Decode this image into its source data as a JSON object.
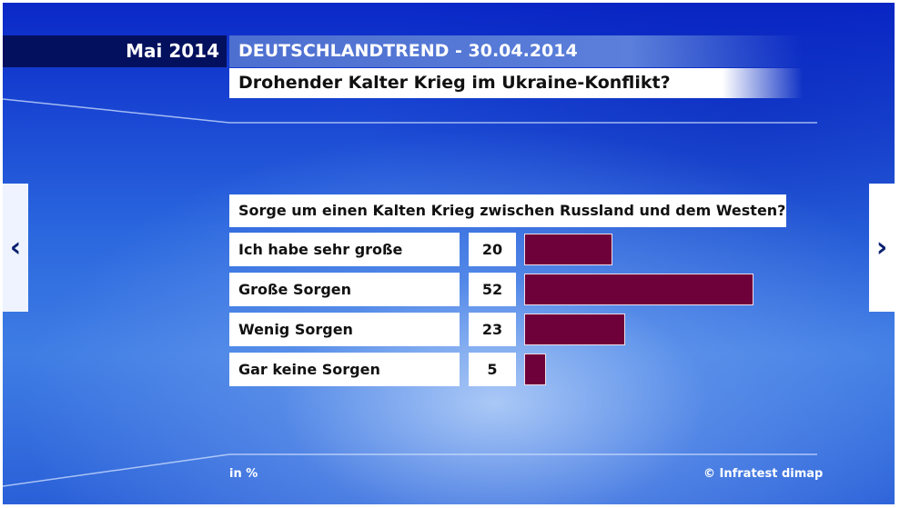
{
  "header": {
    "date_label": "Mai 2014",
    "trend_label": "DEUTSCHLANDTREND - 30.04.2014",
    "title": "Drohender Kalter Krieg im Ukraine-Konflikt?"
  },
  "colors": {
    "bar": "#6e003a",
    "background": "#2a66de",
    "date_box": "#03105e"
  },
  "icons": {
    "prev": "chevron-left-icon",
    "next": "chevron-right-icon"
  },
  "nav": {
    "prev_glyph": "‹",
    "next_glyph": "›"
  },
  "chart_data": {
    "type": "bar",
    "title": "Sorge um einen Kalten Krieg zwischen Russland und dem Westen?",
    "categories": [
      "Ich habe sehr große Sorgen.",
      "Große Sorgen",
      "Wenig Sorgen",
      "Gar keine Sorgen"
    ],
    "values": [
      20,
      52,
      23,
      5
    ],
    "unit_label": "in %",
    "source": "© Infratest dimap",
    "xlim": [
      0,
      60
    ],
    "orientation": "horizontal"
  }
}
